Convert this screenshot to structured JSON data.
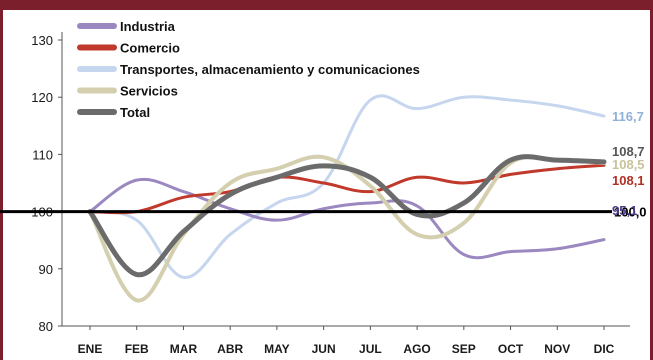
{
  "chart_data": {
    "type": "line",
    "title": "",
    "xlabel": "",
    "ylabel": "",
    "categories": [
      "ENE",
      "FEB",
      "MAR",
      "ABR",
      "MAY",
      "JUN",
      "JUL",
      "AGO",
      "SEP",
      "OCT",
      "NOV",
      "DIC"
    ],
    "ylim": [
      80,
      130
    ],
    "yticks": [
      80,
      90,
      100,
      110,
      120,
      130
    ],
    "grid": false,
    "legend_position": "top-left",
    "series": [
      {
        "name": "Industria",
        "color": "#9b88c0",
        "width": 3,
        "values": [
          100,
          105.5,
          103.5,
          100.5,
          98.5,
          100.5,
          101.5,
          101,
          92.5,
          93,
          93.5,
          95.1
        ],
        "end_label": "95,1",
        "end_color": "#4b3a8c"
      },
      {
        "name": "Comercio",
        "color": "#c0392b",
        "width": 3,
        "values": [
          100,
          100,
          102.5,
          103.5,
          106,
          105,
          103.5,
          106,
          105,
          106.5,
          107.5,
          108.1
        ],
        "end_label": "108,1",
        "end_color": "#b03025"
      },
      {
        "name": "Transportes, almacenamiento y comunicaciones",
        "color": "#c6d6ee",
        "width": 3,
        "values": [
          100,
          98.5,
          88.5,
          96,
          101.5,
          105,
          119.5,
          118,
          120,
          119.5,
          118.5,
          116.7
        ],
        "end_label": "116,7",
        "end_color": "#8fb0d8"
      },
      {
        "name": "Servicios",
        "color": "#d4cfae",
        "width": 4,
        "values": [
          100,
          84.5,
          96,
          105,
          107.5,
          109.5,
          104.5,
          96,
          98,
          108.5,
          109,
          108.5
        ],
        "end_label": "108,5",
        "end_color": "#c8c39a"
      },
      {
        "name": "Total",
        "color": "#6b6b6b",
        "width": 5,
        "values": [
          100,
          89,
          96.5,
          103,
          106,
          108,
          106,
          99.5,
          101.5,
          109,
          109,
          108.7
        ],
        "end_label": "108,7",
        "end_color": "#555555"
      }
    ],
    "reference_line": {
      "value": 100,
      "label": "100,0"
    }
  }
}
